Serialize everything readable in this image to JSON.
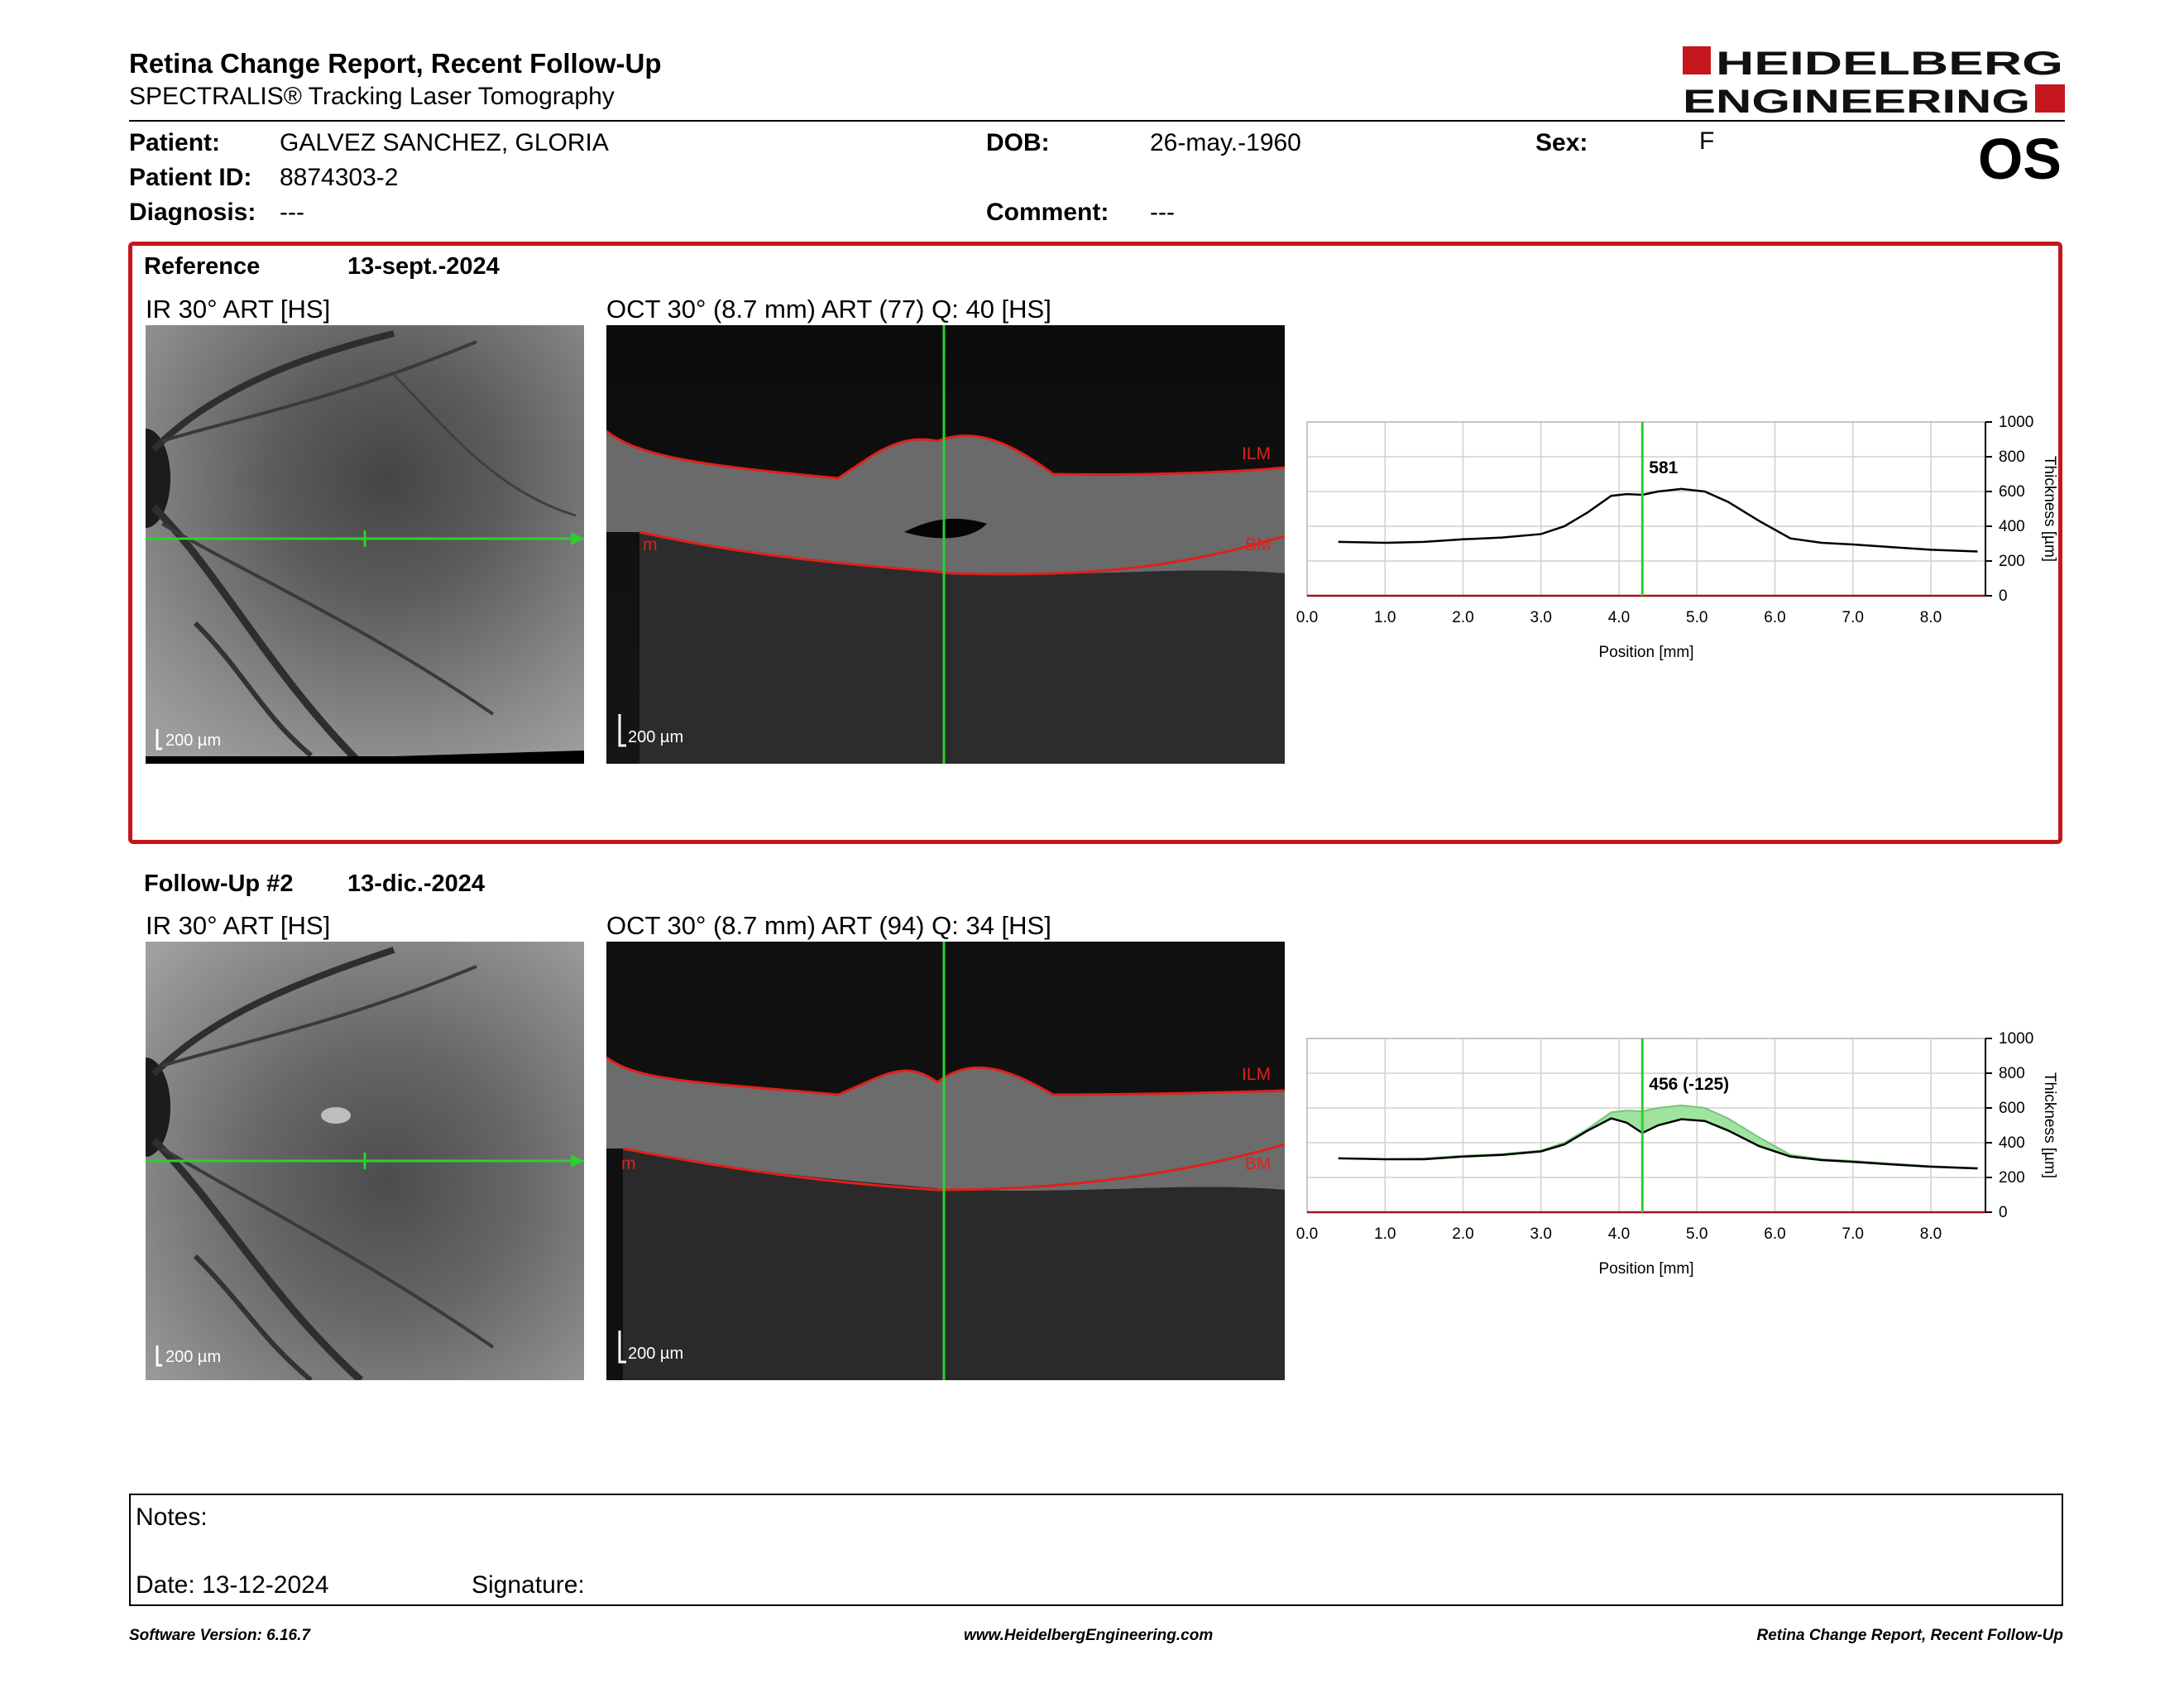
{
  "header": {
    "title": "Retina Change Report, Recent Follow-Up",
    "subtitle": "SPECTRALIS® Tracking Laser Tomography",
    "logo_line1": "HEIDELBERG",
    "logo_line2": "ENGINEERING",
    "eye": "OS"
  },
  "patient": {
    "patient_label": "Patient:",
    "patient_value": "GALVEZ SANCHEZ, GLORIA",
    "id_label": "Patient ID:",
    "id_value": "8874303-2",
    "diagnosis_label": "Diagnosis:",
    "diagnosis_value": "---",
    "dob_label": "DOB:",
    "dob_value": "26-may.-1960",
    "comment_label": "Comment:",
    "comment_value": "---",
    "sex_label": "Sex:",
    "sex_value": "F"
  },
  "reference": {
    "label": "Reference",
    "date": "13-sept.-2024",
    "ir_label": "IR 30° ART [HS]",
    "oct_label": "OCT 30° (8.7 mm) ART (77) Q: 40 [HS]",
    "scale_ir": "200 µm",
    "scale_oct": "200 µm",
    "ilm": "ILM",
    "bm": "BM",
    "m": "m"
  },
  "followup": {
    "label": "Follow-Up #2",
    "date": "13-dic.-2024",
    "ir_label": "IR 30° ART [HS]",
    "oct_label": "OCT 30° (8.7 mm) ART (94) Q: 34 [HS]",
    "scale_ir": "200 µm",
    "scale_oct": "200 µm",
    "ilm": "ILM",
    "bm": "BM",
    "m": "m"
  },
  "chart_data": [
    {
      "type": "line",
      "xlabel": "Position [mm]",
      "ylabel": "Thickness [µm]",
      "xlim": [
        0,
        8.7
      ],
      "ylim": [
        0,
        1000
      ],
      "x_ticks": [
        "0.0",
        "1.0",
        "2.0",
        "3.0",
        "4.0",
        "5.0",
        "6.0",
        "7.0",
        "8.0"
      ],
      "y_ticks": [
        "0",
        "200",
        "400",
        "600",
        "800",
        "1000"
      ],
      "cursor_x": 4.3,
      "cursor_label": "581",
      "grid": true,
      "series": [
        {
          "x": [
            0.4,
            1.0,
            1.5,
            2.0,
            2.5,
            3.0,
            3.3,
            3.6,
            3.9,
            4.1,
            4.3,
            4.5,
            4.8,
            5.1,
            5.4,
            5.8,
            6.2,
            6.6,
            7.0,
            7.5,
            8.0,
            8.6
          ],
          "values": [
            310,
            305,
            310,
            325,
            335,
            355,
            400,
            480,
            575,
            585,
            581,
            600,
            615,
            600,
            540,
            430,
            330,
            305,
            295,
            280,
            265,
            255
          ]
        }
      ]
    },
    {
      "type": "area",
      "xlabel": "Position [mm]",
      "ylabel": "Thickness [µm]",
      "xlim": [
        0,
        8.7
      ],
      "ylim": [
        0,
        1000
      ],
      "x_ticks": [
        "0.0",
        "1.0",
        "2.0",
        "3.0",
        "4.0",
        "5.0",
        "6.0",
        "7.0",
        "8.0"
      ],
      "y_ticks": [
        "0",
        "200",
        "400",
        "600",
        "800",
        "1000"
      ],
      "cursor_x": 4.3,
      "cursor_label": "456 (-125)",
      "grid": true,
      "series": [
        {
          "x": [
            0.4,
            1.0,
            1.5,
            2.0,
            2.5,
            3.0,
            3.3,
            3.6,
            3.9,
            4.1,
            4.3,
            4.5,
            4.8,
            5.1,
            5.4,
            5.8,
            6.2,
            6.6,
            7.0,
            7.5,
            8.0,
            8.6
          ],
          "values": [
            310,
            305,
            305,
            320,
            330,
            350,
            390,
            470,
            540,
            515,
            456,
            500,
            535,
            525,
            470,
            380,
            320,
            300,
            290,
            275,
            262,
            252
          ]
        },
        {
          "x": [
            0.4,
            1.0,
            1.5,
            2.0,
            2.5,
            3.0,
            3.3,
            3.6,
            3.9,
            4.1,
            4.3,
            4.5,
            4.8,
            5.1,
            5.4,
            5.8,
            6.2,
            6.6,
            7.0,
            7.5,
            8.0,
            8.6
          ],
          "values": [
            310,
            305,
            310,
            325,
            335,
            355,
            400,
            480,
            575,
            585,
            581,
            600,
            615,
            600,
            540,
            430,
            330,
            305,
            295,
            280,
            265,
            255
          ]
        }
      ]
    }
  ],
  "notes": {
    "notes_label": "Notes:",
    "date_label": "Date: 13-12-2024",
    "signature_label": "Signature:"
  },
  "footer": {
    "left": "Software Version: 6.16.7",
    "center": "www.HeidelbergEngineering.com",
    "right": "Retina Change Report, Recent Follow-Up"
  },
  "colors": {
    "brand_red": "#c5161d",
    "cursor_green": "#2bd12b",
    "area_green": "#9fe39f"
  }
}
